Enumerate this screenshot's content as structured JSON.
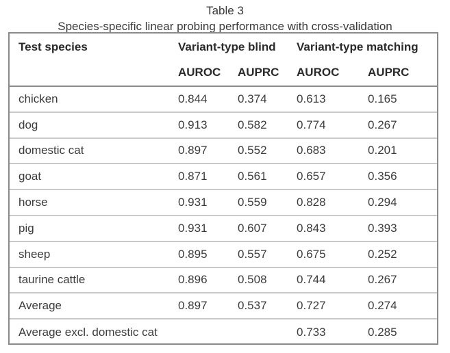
{
  "caption": {
    "title": "Table 3",
    "subtitle": "Species-specific linear probing performance with cross-validation"
  },
  "table": {
    "header_col0": "Test species",
    "group_headers": [
      "Variant-type blind",
      "Variant-type matching"
    ],
    "sub_headers": [
      "AUROC",
      "AUPRC",
      "AUROC",
      "AUPRC"
    ],
    "rows": [
      {
        "species": "chicken",
        "blind_auroc": "0.844",
        "blind_auprc": "0.374",
        "match_auroc": "0.613",
        "match_auprc": "0.165"
      },
      {
        "species": "dog",
        "blind_auroc": "0.913",
        "blind_auprc": "0.582",
        "match_auroc": "0.774",
        "match_auprc": "0.267"
      },
      {
        "species": "domestic cat",
        "blind_auroc": "0.897",
        "blind_auprc": "0.552",
        "match_auroc": "0.683",
        "match_auprc": "0.201"
      },
      {
        "species": "goat",
        "blind_auroc": "0.871",
        "blind_auprc": "0.561",
        "match_auroc": "0.657",
        "match_auprc": "0.356"
      },
      {
        "species": "horse",
        "blind_auroc": "0.931",
        "blind_auprc": "0.559",
        "match_auroc": "0.828",
        "match_auprc": "0.294"
      },
      {
        "species": "pig",
        "blind_auroc": "0.931",
        "blind_auprc": "0.607",
        "match_auroc": "0.843",
        "match_auprc": "0.393"
      },
      {
        "species": "sheep",
        "blind_auroc": "0.895",
        "blind_auprc": "0.557",
        "match_auroc": "0.675",
        "match_auprc": "0.252"
      },
      {
        "species": "taurine cattle",
        "blind_auroc": "0.896",
        "blind_auprc": "0.508",
        "match_auroc": "0.744",
        "match_auprc": "0.267"
      },
      {
        "species": "Average",
        "blind_auroc": "0.897",
        "blind_auprc": "0.537",
        "match_auroc": "0.727",
        "match_auprc": "0.274"
      },
      {
        "species": "Average excl. domestic cat",
        "blind_auroc": "",
        "blind_auprc": "",
        "match_auroc": "0.733",
        "match_auprc": "0.285"
      }
    ]
  }
}
